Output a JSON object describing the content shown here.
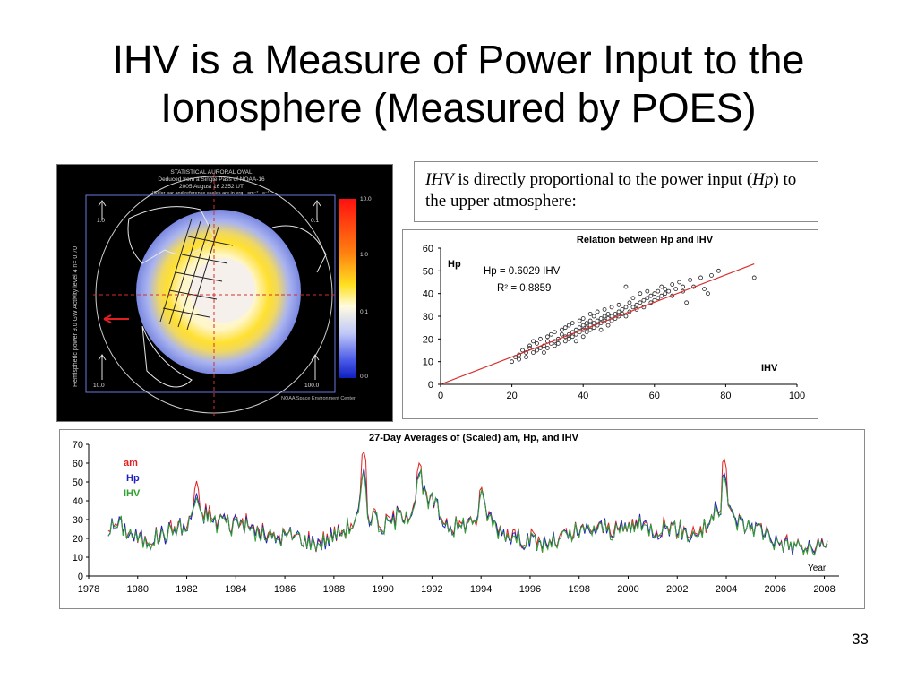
{
  "slide": {
    "title_line1": "IHV is a Measure of Power Input to the",
    "title_line2": "Ionosphere (Measured by POES)",
    "page_number": "33"
  },
  "statement": {
    "part1": "IHV",
    "part2": " is directly proportional to the power input (",
    "part3": "Hp",
    "part4": ") to the upper atmosphere:"
  },
  "map": {
    "title_lines": [
      "STATISTICAL AURORAL OVAL",
      "Deduced from a Single Pass of NOAA-16",
      "2005 August 16 2352 UT",
      "(Color bar and reference scales are in erg · cm⁻² · s⁻¹)"
    ],
    "side_label": "Hemispheric power  9.0 GW  Activity level  4  n= 0.70",
    "colorbar_ticks": [
      "10.0",
      "1.0",
      "0.1",
      "0.0"
    ],
    "ref_labels": [
      "1.0",
      "0.1",
      "10.0",
      "100.0"
    ],
    "credit": "NOAA Space Environment Center"
  },
  "chart_data": [
    {
      "type": "scatter",
      "title": "Relation between Hp and IHV",
      "xlabel": "IHV",
      "ylabel": "Hp",
      "xlim": [
        0,
        100
      ],
      "ylim": [
        0,
        60
      ],
      "xticks": [
        "0",
        "20",
        "40",
        "60",
        "80",
        "100"
      ],
      "yticks": [
        "0",
        "10",
        "20",
        "30",
        "40",
        "50",
        "60"
      ],
      "annotation_fit": "Hp = 0.6029 IHV",
      "annotation_r2": "R² = 0.8859",
      "fit": {
        "slope": 0.6029,
        "intercept": 0,
        "x_range": [
          0,
          88
        ]
      },
      "colors": {
        "points": "#222222",
        "fit": "#d83030"
      },
      "points": [
        [
          20,
          10
        ],
        [
          21,
          12
        ],
        [
          22,
          13
        ],
        [
          22,
          11
        ],
        [
          23,
          15
        ],
        [
          24,
          14
        ],
        [
          24,
          12
        ],
        [
          25,
          17
        ],
        [
          25,
          16
        ],
        [
          26,
          14
        ],
        [
          26,
          19
        ],
        [
          27,
          15
        ],
        [
          27,
          18
        ],
        [
          28,
          16
        ],
        [
          28,
          20
        ],
        [
          29,
          17
        ],
        [
          29,
          14
        ],
        [
          30,
          19
        ],
        [
          30,
          21
        ],
        [
          30,
          16
        ],
        [
          31,
          18
        ],
        [
          31,
          22
        ],
        [
          32,
          19
        ],
        [
          32,
          17
        ],
        [
          32,
          23
        ],
        [
          33,
          20
        ],
        [
          33,
          18
        ],
        [
          34,
          22
        ],
        [
          34,
          24
        ],
        [
          35,
          21
        ],
        [
          35,
          19
        ],
        [
          35,
          25
        ],
        [
          36,
          22
        ],
        [
          36,
          20
        ],
        [
          36,
          26
        ],
        [
          37,
          23
        ],
        [
          37,
          21
        ],
        [
          37,
          27
        ],
        [
          38,
          24
        ],
        [
          38,
          22
        ],
        [
          38,
          19
        ],
        [
          39,
          25
        ],
        [
          39,
          23
        ],
        [
          39,
          28
        ],
        [
          40,
          26
        ],
        [
          40,
          24
        ],
        [
          40,
          21
        ],
        [
          40,
          29
        ],
        [
          41,
          25
        ],
        [
          41,
          27
        ],
        [
          41,
          23
        ],
        [
          42,
          26
        ],
        [
          42,
          28
        ],
        [
          42,
          24
        ],
        [
          42,
          31
        ],
        [
          43,
          27
        ],
        [
          43,
          25
        ],
        [
          43,
          30
        ],
        [
          44,
          28
        ],
        [
          44,
          26
        ],
        [
          44,
          32
        ],
        [
          45,
          29
        ],
        [
          45,
          27
        ],
        [
          45,
          24
        ],
        [
          46,
          28
        ],
        [
          46,
          30
        ],
        [
          46,
          33
        ],
        [
          47,
          29
        ],
        [
          47,
          31
        ],
        [
          47,
          26
        ],
        [
          48,
          30
        ],
        [
          48,
          28
        ],
        [
          48,
          34
        ],
        [
          49,
          31
        ],
        [
          49,
          29
        ],
        [
          50,
          32
        ],
        [
          50,
          30
        ],
        [
          50,
          35
        ],
        [
          51,
          33
        ],
        [
          51,
          31
        ],
        [
          52,
          30
        ],
        [
          52,
          34
        ],
        [
          52,
          43
        ],
        [
          53,
          32
        ],
        [
          53,
          36
        ],
        [
          54,
          34
        ],
        [
          54,
          38
        ],
        [
          55,
          35
        ],
        [
          55,
          33
        ],
        [
          56,
          36
        ],
        [
          56,
          40
        ],
        [
          57,
          37
        ],
        [
          57,
          34
        ],
        [
          58,
          38
        ],
        [
          58,
          41
        ],
        [
          59,
          39
        ],
        [
          59,
          36
        ],
        [
          60,
          40
        ],
        [
          60,
          37
        ],
        [
          61,
          41
        ],
        [
          61,
          38
        ],
        [
          62,
          39
        ],
        [
          62,
          43
        ],
        [
          63,
          40
        ],
        [
          63,
          42
        ],
        [
          64,
          41
        ],
        [
          65,
          44
        ],
        [
          65,
          39
        ],
        [
          66,
          42
        ],
        [
          67,
          45
        ],
        [
          68,
          43
        ],
        [
          68,
          41
        ],
        [
          70,
          46
        ],
        [
          71,
          43
        ],
        [
          73,
          47
        ],
        [
          74,
          42
        ],
        [
          76,
          48
        ],
        [
          78,
          50
        ],
        [
          75,
          40
        ],
        [
          69,
          36
        ],
        [
          88,
          47
        ]
      ]
    },
    {
      "type": "line",
      "title": "27-Day Averages of (Scaled) am, Hp, and IHV",
      "xlabel": "Year",
      "xlim": [
        1978,
        2008.6
      ],
      "ylim": [
        0,
        70
      ],
      "xticks": [
        "1978",
        "1980",
        "1982",
        "1984",
        "1986",
        "1988",
        "1990",
        "1992",
        "1994",
        "1996",
        "1998",
        "2000",
        "2002",
        "2004",
        "2006",
        "2008"
      ],
      "yticks": [
        "0",
        "10",
        "20",
        "30",
        "40",
        "50",
        "60",
        "70"
      ],
      "series": [
        {
          "name": "am",
          "color": "#e02020"
        },
        {
          "name": "Hp",
          "color": "#2020c0"
        },
        {
          "name": "IHV",
          "color": "#30a030"
        }
      ],
      "base": [
        [
          1978.8,
          25
        ],
        [
          1979.2,
          28
        ],
        [
          1979.6,
          24
        ],
        [
          1980.0,
          20
        ],
        [
          1980.4,
          19
        ],
        [
          1980.8,
          21
        ],
        [
          1981.2,
          23
        ],
        [
          1981.6,
          26
        ],
        [
          1982.0,
          25
        ],
        [
          1982.2,
          33
        ],
        [
          1982.4,
          42
        ],
        [
          1982.6,
          28
        ],
        [
          1982.8,
          35
        ],
        [
          1983.0,
          31
        ],
        [
          1983.2,
          27
        ],
        [
          1983.4,
          33
        ],
        [
          1983.6,
          29
        ],
        [
          1983.8,
          26
        ],
        [
          1984.0,
          30
        ],
        [
          1984.4,
          27
        ],
        [
          1984.8,
          24
        ],
        [
          1985.2,
          22
        ],
        [
          1985.6,
          20
        ],
        [
          1986.0,
          21
        ],
        [
          1986.4,
          22
        ],
        [
          1986.8,
          19
        ],
        [
          1987.2,
          18
        ],
        [
          1987.6,
          19
        ],
        [
          1988.0,
          22
        ],
        [
          1988.4,
          25
        ],
        [
          1988.8,
          28
        ],
        [
          1989.0,
          32
        ],
        [
          1989.2,
          55
        ],
        [
          1989.4,
          30
        ],
        [
          1989.6,
          35
        ],
        [
          1989.8,
          28
        ],
        [
          1990.0,
          26
        ],
        [
          1990.4,
          30
        ],
        [
          1990.8,
          33
        ],
        [
          1991.2,
          35
        ],
        [
          1991.5,
          55
        ],
        [
          1991.7,
          42
        ],
        [
          1991.9,
          38
        ],
        [
          1992.1,
          40
        ],
        [
          1992.3,
          32
        ],
        [
          1992.6,
          28
        ],
        [
          1993.0,
          26
        ],
        [
          1993.4,
          28
        ],
        [
          1993.8,
          30
        ],
        [
          1994.0,
          42
        ],
        [
          1994.2,
          35
        ],
        [
          1994.5,
          28
        ],
        [
          1995.0,
          23
        ],
        [
          1995.5,
          21
        ],
        [
          1996.0,
          19
        ],
        [
          1996.5,
          17
        ],
        [
          1997.0,
          18
        ],
        [
          1997.5,
          21
        ],
        [
          1998.0,
          23
        ],
        [
          1998.5,
          25
        ],
        [
          1999.0,
          26
        ],
        [
          1999.5,
          24
        ],
        [
          2000.0,
          26
        ],
        [
          2000.4,
          28
        ],
        [
          2000.8,
          26
        ],
        [
          2001.2,
          25
        ],
        [
          2001.6,
          27
        ],
        [
          2002.0,
          25
        ],
        [
          2002.5,
          22
        ],
        [
          2003.0,
          24
        ],
        [
          2003.4,
          30
        ],
        [
          2003.6,
          35
        ],
        [
          2003.8,
          38
        ],
        [
          2003.9,
          55
        ],
        [
          2004.0,
          40
        ],
        [
          2004.2,
          32
        ],
        [
          2004.6,
          28
        ],
        [
          2005.0,
          27
        ],
        [
          2005.4,
          25
        ],
        [
          2005.8,
          22
        ],
        [
          2006.0,
          18
        ],
        [
          2006.4,
          17
        ],
        [
          2006.8,
          16
        ],
        [
          2007.2,
          15
        ],
        [
          2007.6,
          14
        ],
        [
          2008.0,
          15
        ],
        [
          2008.2,
          18
        ]
      ],
      "peaks": [
        {
          "x": 1982.4,
          "am": 50,
          "Hp": 44,
          "IHV": 42
        },
        {
          "x": 1989.2,
          "am": 67,
          "Hp": 55,
          "IHV": 52
        },
        {
          "x": 1991.5,
          "am": 61,
          "Hp": 56,
          "IHV": 54
        },
        {
          "x": 1994.0,
          "am": 48,
          "Hp": 45,
          "IHV": 43
        },
        {
          "x": 2003.9,
          "am": 63,
          "Hp": 56,
          "IHV": 54
        }
      ]
    }
  ]
}
